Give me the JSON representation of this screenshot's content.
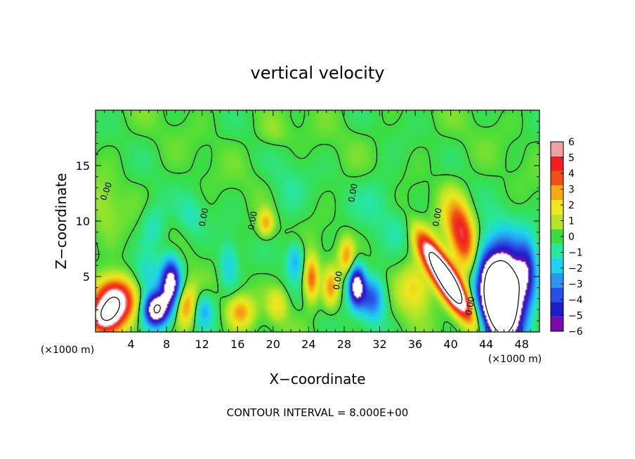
{
  "chart_data": {
    "type": "heatmap",
    "title": "vertical velocity",
    "xlabel": "X−coordinate",
    "ylabel": "Z−coordinate",
    "x_unit_left": "(×1000 m)",
    "x_unit_right": "(×1000 m)",
    "footer": "CONTOUR INTERVAL = 8.000E+00",
    "xlim": [
      0,
      50
    ],
    "ylim": [
      0,
      20
    ],
    "x_ticks": [
      4,
      8,
      12,
      16,
      20,
      24,
      28,
      32,
      36,
      40,
      44,
      48
    ],
    "y_ticks": [
      5,
      10,
      15
    ],
    "colorbar": {
      "labels": [
        "6",
        "5",
        "4",
        "3",
        "2",
        "1",
        "0",
        "−1",
        "−2",
        "−3",
        "−4",
        "−5",
        "−6"
      ],
      "min": -6,
      "max": 6,
      "colors": [
        "#7a0aa8",
        "#1e1ec8",
        "#2850e6",
        "#2a96f0",
        "#1ed2f0",
        "#28e6a0",
        "#3cdc3c",
        "#b4e628",
        "#f0e61e",
        "#f5aa14",
        "#f05014",
        "#f01e1e",
        "#f0a0a0"
      ]
    },
    "contour_label": "0.00",
    "features": [
      {
        "x": 39.5,
        "z": 4.8,
        "w": 6.5,
        "h": 1.6,
        "angle": -52,
        "value": 12
      },
      {
        "x": 41.5,
        "z": 8.5,
        "w": 5.0,
        "h": 2.2,
        "angle": -70,
        "value": 6
      },
      {
        "x": 45.8,
        "z": 3.2,
        "w": 3.3,
        "h": 6.0,
        "angle": 0,
        "value": -14
      },
      {
        "x": 48.6,
        "z": 5.5,
        "w": 1.6,
        "h": 4.0,
        "angle": 0,
        "value": -4
      },
      {
        "x": 43.5,
        "z": 6.0,
        "w": 2.2,
        "h": 5.0,
        "angle": 20,
        "value": -3
      },
      {
        "x": 2.2,
        "z": 2.8,
        "w": 3.0,
        "h": 2.8,
        "angle": 0,
        "value": 8
      },
      {
        "x": 0.8,
        "z": 1.2,
        "w": 2.4,
        "h": 2.0,
        "angle": 0,
        "value": 5
      },
      {
        "x": 6.8,
        "z": 2.0,
        "w": 2.0,
        "h": 2.2,
        "angle": 0,
        "value": -8
      },
      {
        "x": 8.5,
        "z": 4.4,
        "w": 1.6,
        "h": 3.2,
        "angle": 0,
        "value": -7
      },
      {
        "x": 10.3,
        "z": 2.3,
        "w": 2.0,
        "h": 2.6,
        "angle": 0,
        "value": 4
      },
      {
        "x": 12.0,
        "z": 2.0,
        "w": 1.8,
        "h": 2.2,
        "angle": 0,
        "value": -3
      },
      {
        "x": 29.4,
        "z": 4.2,
        "w": 1.3,
        "h": 2.6,
        "angle": 0,
        "value": -7
      },
      {
        "x": 31.2,
        "z": 3.0,
        "w": 2.0,
        "h": 2.8,
        "angle": 0,
        "value": -4
      },
      {
        "x": 28.3,
        "z": 6.8,
        "w": 1.2,
        "h": 2.2,
        "angle": 0,
        "value": 3
      },
      {
        "x": 24.3,
        "z": 4.8,
        "w": 1.2,
        "h": 2.8,
        "angle": 0,
        "value": 4
      },
      {
        "x": 26.5,
        "z": 4.0,
        "w": 1.2,
        "h": 2.4,
        "angle": 0,
        "value": 3
      },
      {
        "x": 16.3,
        "z": 1.8,
        "w": 2.0,
        "h": 2.0,
        "angle": 0,
        "value": 3
      },
      {
        "x": 19.2,
        "z": 9.8,
        "w": 1.2,
        "h": 1.6,
        "angle": 0,
        "value": 3
      },
      {
        "x": 36.0,
        "z": 4.0,
        "w": 2.5,
        "h": 3.0,
        "angle": 0,
        "value": 2.5
      },
      {
        "x": 1.0,
        "z": 11.0,
        "w": 2.8,
        "h": 4.0,
        "angle": 0,
        "value": 0.8
      },
      {
        "x": 6.5,
        "z": 9.5,
        "w": 2.0,
        "h": 3.0,
        "angle": 0,
        "value": -1.5
      },
      {
        "x": 5.8,
        "z": 5.2,
        "w": 2.0,
        "h": 2.6,
        "angle": 0,
        "value": -1.5
      },
      {
        "x": 10.8,
        "z": 10.5,
        "w": 2.0,
        "h": 2.5,
        "angle": 0,
        "value": -1.2
      },
      {
        "x": 35.0,
        "z": 9.5,
        "w": 2.5,
        "h": 2.5,
        "angle": 0,
        "value": -1.2
      },
      {
        "x": 21.5,
        "z": 12.5,
        "w": 3.0,
        "h": 4.0,
        "angle": 0,
        "value": -0.8
      },
      {
        "x": 20.0,
        "z": 18.0,
        "w": 2.5,
        "h": 2.0,
        "angle": 0,
        "value": 0.8
      },
      {
        "x": 32.0,
        "z": 12.0,
        "w": 3.5,
        "h": 3.5,
        "angle": 0,
        "value": -1.0
      },
      {
        "x": 15.0,
        "z": 6.0,
        "w": 1.5,
        "h": 3.0,
        "angle": 0,
        "value": -2
      },
      {
        "x": 22.5,
        "z": 6.5,
        "w": 1.4,
        "h": 2.4,
        "angle": 0,
        "value": -2.5
      },
      {
        "x": 20.5,
        "z": 2.5,
        "w": 1.6,
        "h": 2.0,
        "angle": 0,
        "value": 2
      }
    ]
  }
}
